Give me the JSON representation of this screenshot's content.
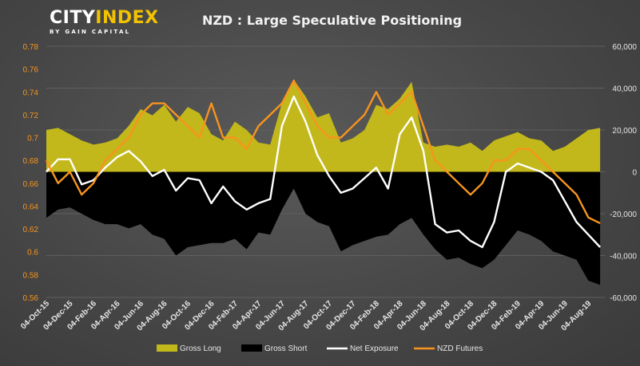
{
  "logo": {
    "word_a": "CITY",
    "word_b": "INDEX",
    "tagline": "BY GAIN CAPITAL"
  },
  "colors": {
    "gross_long": "#c2b81b",
    "gross_short": "#000000",
    "net_exposure": "#ffffff",
    "nzd_futures": "#f7941d",
    "left_axis_text": "#f7941d",
    "right_axis_text": "#e6e6e6"
  },
  "chart_data": {
    "type": "area",
    "title": "NZD : Large Speculative Positioning",
    "x_ticks": [
      "04-Oct-15",
      "04-Dec-15",
      "04-Feb-16",
      "04-Apr-16",
      "04-Jun-16",
      "04-Aug-16",
      "04-Oct-16",
      "04-Dec-16",
      "04-Feb-17",
      "04-Apr-17",
      "04-Jun-17",
      "04-Aug-17",
      "04-Oct-17",
      "04-Dec-17",
      "04-Feb-18",
      "04-Apr-18",
      "04-Jun-18",
      "04-Aug-18",
      "04-Oct-18",
      "04-Dec-18",
      "04-Feb-19",
      "04-Apr-19",
      "04-Jun-19",
      "04-Aug-19"
    ],
    "x_tick_months": [
      0,
      2,
      4,
      6,
      8,
      10,
      12,
      14,
      16,
      18,
      20,
      22,
      24,
      26,
      28,
      30,
      32,
      34,
      36,
      38,
      40,
      42,
      44,
      46
    ],
    "x_range_months": [
      0,
      47.4
    ],
    "left_axis": {
      "ylim": [
        0.56,
        0.78
      ],
      "ticks": [
        "0.56",
        "0.58",
        "0.6",
        "0.62",
        "0.64",
        "0.66",
        "0.68",
        "0.7",
        "0.72",
        "0.74",
        "0.76",
        "0.78"
      ]
    },
    "right_axis": {
      "ylim": [
        -60000,
        60000
      ],
      "ticks": [
        "-60,000",
        "-40,000",
        "-20,000",
        "0",
        "20,000",
        "40,000",
        "60,000"
      ]
    },
    "legend": {
      "position": "bottom",
      "items": [
        "Gross Long",
        "Gross Short",
        "Net Exposure",
        "NZD Futures"
      ]
    },
    "series": [
      {
        "name": "Gross Long",
        "axis": "right",
        "style": "area",
        "x": [
          0,
          1,
          2,
          3,
          4,
          5,
          6,
          7,
          8,
          9,
          10,
          11,
          12,
          13,
          14,
          15,
          16,
          17,
          18,
          19,
          20,
          21,
          22,
          23,
          24,
          25,
          26,
          27,
          28,
          29,
          30,
          31,
          32,
          33,
          34,
          35,
          36,
          37,
          38,
          39,
          40,
          41,
          42,
          43,
          44,
          45,
          46,
          47
        ],
        "values": [
          20000,
          21000,
          18000,
          15000,
          13000,
          14000,
          16000,
          22000,
          30000,
          27000,
          32000,
          24000,
          31000,
          28000,
          18000,
          15000,
          24000,
          20000,
          14000,
          13000,
          33000,
          44000,
          36000,
          26000,
          28000,
          14000,
          16000,
          20000,
          32000,
          30000,
          35000,
          43000,
          14000,
          12000,
          13000,
          12000,
          14000,
          10000,
          15000,
          17000,
          19000,
          16000,
          15000,
          10000,
          12000,
          16000,
          20000,
          21000
        ]
      },
      {
        "name": "Gross Short",
        "axis": "right",
        "style": "area",
        "x": [
          0,
          1,
          2,
          3,
          4,
          5,
          6,
          7,
          8,
          9,
          10,
          11,
          12,
          13,
          14,
          15,
          16,
          17,
          18,
          19,
          20,
          21,
          22,
          23,
          24,
          25,
          26,
          27,
          28,
          29,
          30,
          31,
          32,
          33,
          34,
          35,
          36,
          37,
          38,
          39,
          40,
          41,
          42,
          43,
          44,
          45,
          46,
          47
        ],
        "values": [
          -22000,
          -18000,
          -17000,
          -20000,
          -23000,
          -25000,
          -25000,
          -27000,
          -25000,
          -30000,
          -32000,
          -40000,
          -36000,
          -35000,
          -34000,
          -34000,
          -32000,
          -37000,
          -29000,
          -30000,
          -18000,
          -8000,
          -20000,
          -24000,
          -26000,
          -38000,
          -35000,
          -33000,
          -31000,
          -30000,
          -25000,
          -22000,
          -30000,
          -37000,
          -42000,
          -41000,
          -44000,
          -46000,
          -42000,
          -35000,
          -28000,
          -30000,
          -33000,
          -38000,
          -40000,
          -42000,
          -52000,
          -54000
        ]
      },
      {
        "name": "Net Exposure",
        "axis": "right",
        "style": "line",
        "x": [
          0,
          1,
          2,
          3,
          4,
          5,
          6,
          7,
          8,
          9,
          10,
          11,
          12,
          13,
          14,
          15,
          16,
          17,
          18,
          19,
          20,
          21,
          22,
          23,
          24,
          25,
          26,
          27,
          28,
          29,
          30,
          31,
          32,
          33,
          34,
          35,
          36,
          37,
          38,
          39,
          40,
          41,
          42,
          43,
          44,
          45,
          46,
          47
        ],
        "values": [
          0,
          6000,
          6000,
          -6000,
          -4000,
          2000,
          7000,
          10000,
          5000,
          -2000,
          1000,
          -9000,
          -3000,
          -4000,
          -15000,
          -7000,
          -14000,
          -18000,
          -15000,
          -13000,
          22000,
          36000,
          24000,
          8000,
          -2000,
          -10000,
          -8000,
          -3000,
          2000,
          -8000,
          18000,
          26000,
          10000,
          -25000,
          -29000,
          -28000,
          -33000,
          -36000,
          -24000,
          0,
          4000,
          2000,
          0,
          -4000,
          -14000,
          -24000,
          -30000,
          -36000
        ]
      },
      {
        "name": "NZD Futures",
        "axis": "left",
        "style": "line",
        "x": [
          0,
          1,
          2,
          3,
          4,
          5,
          6,
          7,
          8,
          9,
          10,
          11,
          12,
          13,
          14,
          15,
          16,
          17,
          18,
          19,
          20,
          21,
          22,
          23,
          24,
          25,
          26,
          27,
          28,
          29,
          30,
          31,
          32,
          33,
          34,
          35,
          36,
          37,
          38,
          39,
          40,
          41,
          42,
          43,
          44,
          45,
          46,
          47
        ],
        "values": [
          0.68,
          0.66,
          0.67,
          0.65,
          0.66,
          0.68,
          0.69,
          0.7,
          0.72,
          0.73,
          0.73,
          0.72,
          0.71,
          0.7,
          0.73,
          0.7,
          0.7,
          0.69,
          0.71,
          0.72,
          0.73,
          0.75,
          0.73,
          0.71,
          0.7,
          0.7,
          0.71,
          0.72,
          0.74,
          0.72,
          0.73,
          0.74,
          0.71,
          0.68,
          0.67,
          0.66,
          0.65,
          0.66,
          0.68,
          0.68,
          0.69,
          0.69,
          0.68,
          0.67,
          0.66,
          0.65,
          0.63,
          0.625
        ]
      }
    ]
  }
}
